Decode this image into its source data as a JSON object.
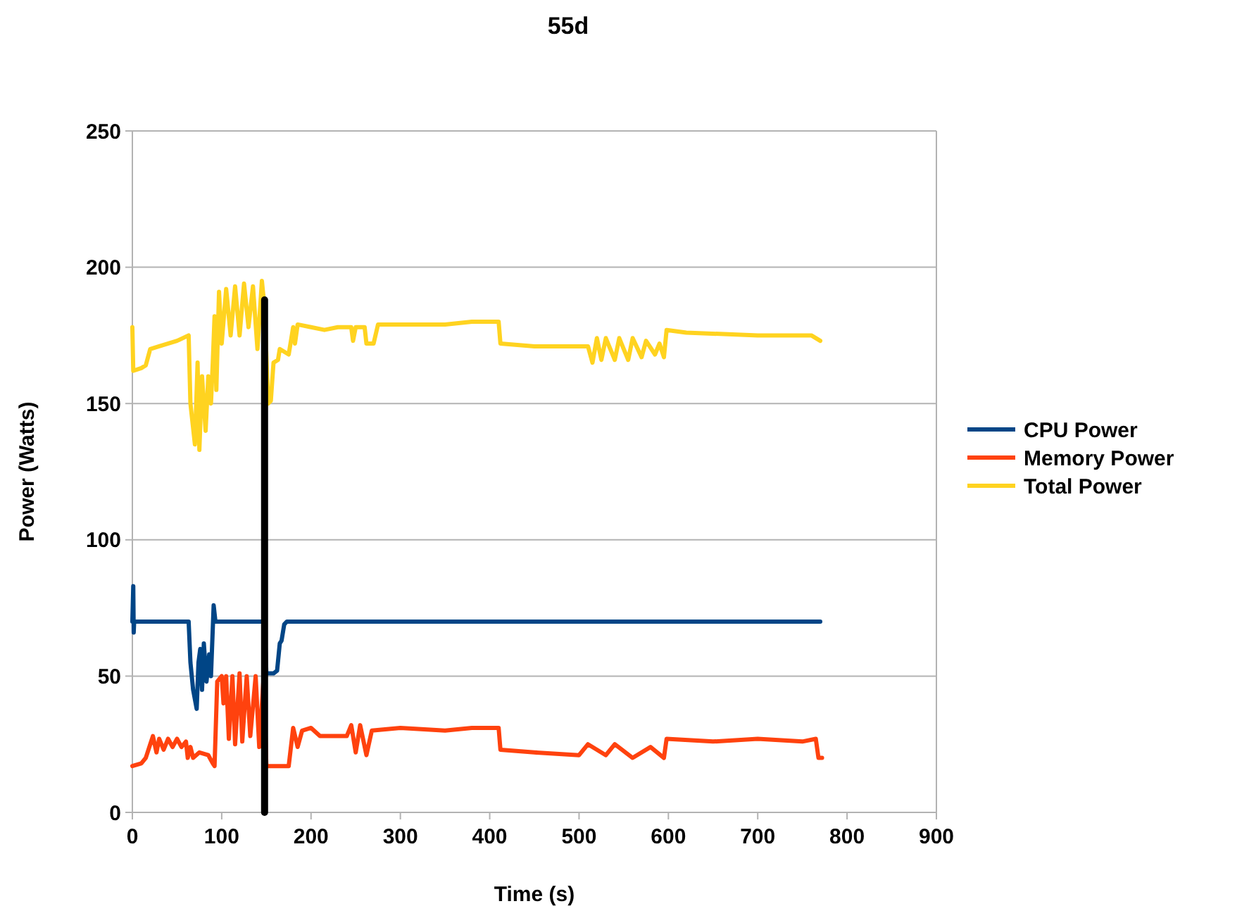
{
  "chart_data": {
    "type": "line",
    "title": "55d",
    "xlabel": "Time (s)",
    "ylabel": "Power (Watts)",
    "xlim": [
      0,
      900
    ],
    "xticks": [
      0,
      100,
      200,
      300,
      400,
      500,
      600,
      700,
      800,
      900
    ],
    "ylim": [
      0,
      250
    ],
    "yticks": [
      0,
      50,
      100,
      150,
      200,
      250
    ],
    "grid": "y",
    "legend": "right",
    "line_style": "solid",
    "marker": "none",
    "series": [
      {
        "name": "CPU Power",
        "color": "#004586",
        "x": [
          0,
          1,
          1.5,
          2,
          63,
          65,
          68,
          72,
          74,
          76,
          78,
          80,
          83,
          86,
          88,
          91,
          93,
          148,
          150,
          155,
          158,
          162,
          165,
          167,
          170,
          173,
          770
        ],
        "values": [
          70,
          83,
          66,
          70,
          70,
          55,
          45,
          38,
          55,
          60,
          45,
          62,
          48,
          58,
          50,
          76,
          70,
          70,
          51,
          51,
          51,
          52,
          62,
          63,
          69,
          70,
          70
        ]
      },
      {
        "name": "Memory Power",
        "color": "#ff420e",
        "x": [
          0,
          10,
          15,
          20,
          23,
          27,
          30,
          35,
          40,
          45,
          50,
          55,
          60,
          62,
          65,
          68,
          75,
          85,
          90,
          92,
          95,
          100,
          102,
          105,
          108,
          112,
          115,
          120,
          123,
          128,
          132,
          138,
          142,
          147,
          150,
          175,
          180,
          185,
          190,
          200,
          210,
          240,
          245,
          250,
          255,
          262,
          268,
          300,
          350,
          380,
          410,
          412,
          450,
          500,
          510,
          530,
          540,
          560,
          580,
          595,
          598,
          650,
          700,
          750,
          765,
          768,
          772
        ],
        "values": [
          17,
          18,
          20,
          25,
          28,
          22,
          27,
          23,
          27,
          24,
          27,
          24,
          26,
          20,
          24,
          20,
          22,
          21,
          18,
          17,
          48,
          50,
          40,
          50,
          27,
          50,
          25,
          51,
          26,
          50,
          28,
          50,
          24,
          50,
          17,
          17,
          31,
          24,
          30,
          31,
          28,
          28,
          32,
          22,
          32,
          21,
          30,
          31,
          30,
          31,
          31,
          23,
          22,
          21,
          25,
          21,
          25,
          20,
          24,
          20,
          27,
          26,
          27,
          26,
          27,
          20,
          20
        ]
      },
      {
        "name": "Total Power",
        "color": "#ffd320",
        "x": [
          0,
          1,
          10,
          15,
          20,
          30,
          50,
          63,
          65,
          70,
          73,
          75,
          78,
          82,
          85,
          88,
          90,
          92,
          94,
          97,
          100,
          105,
          110,
          115,
          120,
          125,
          130,
          135,
          140,
          145,
          148,
          152,
          155,
          158,
          163,
          165,
          175,
          180,
          182,
          185,
          200,
          215,
          230,
          245,
          247,
          250,
          260,
          262,
          270,
          275,
          300,
          350,
          380,
          410,
          412,
          450,
          500,
          510,
          515,
          520,
          525,
          530,
          540,
          545,
          555,
          560,
          570,
          575,
          585,
          590,
          595,
          598,
          620,
          700,
          760,
          770
        ],
        "values": [
          178,
          162,
          163,
          164,
          170,
          171,
          173,
          175,
          150,
          135,
          165,
          133,
          160,
          140,
          160,
          150,
          165,
          182,
          155,
          191,
          172,
          192,
          175,
          193,
          175,
          194,
          178,
          193,
          170,
          195,
          185,
          150,
          151,
          165,
          166,
          170,
          168,
          178,
          172,
          179,
          178,
          177,
          178,
          178,
          173,
          178,
          178,
          172,
          172,
          179,
          179,
          179,
          180,
          180,
          172,
          171,
          171,
          171,
          165,
          174,
          166,
          174,
          166,
          174,
          166,
          174,
          167,
          173,
          168,
          172,
          167,
          177,
          176,
          175,
          175,
          173
        ]
      },
      {
        "color": "#000000",
        "x": [
          148,
          148
        ],
        "values": [
          0,
          188
        ]
      }
    ]
  }
}
